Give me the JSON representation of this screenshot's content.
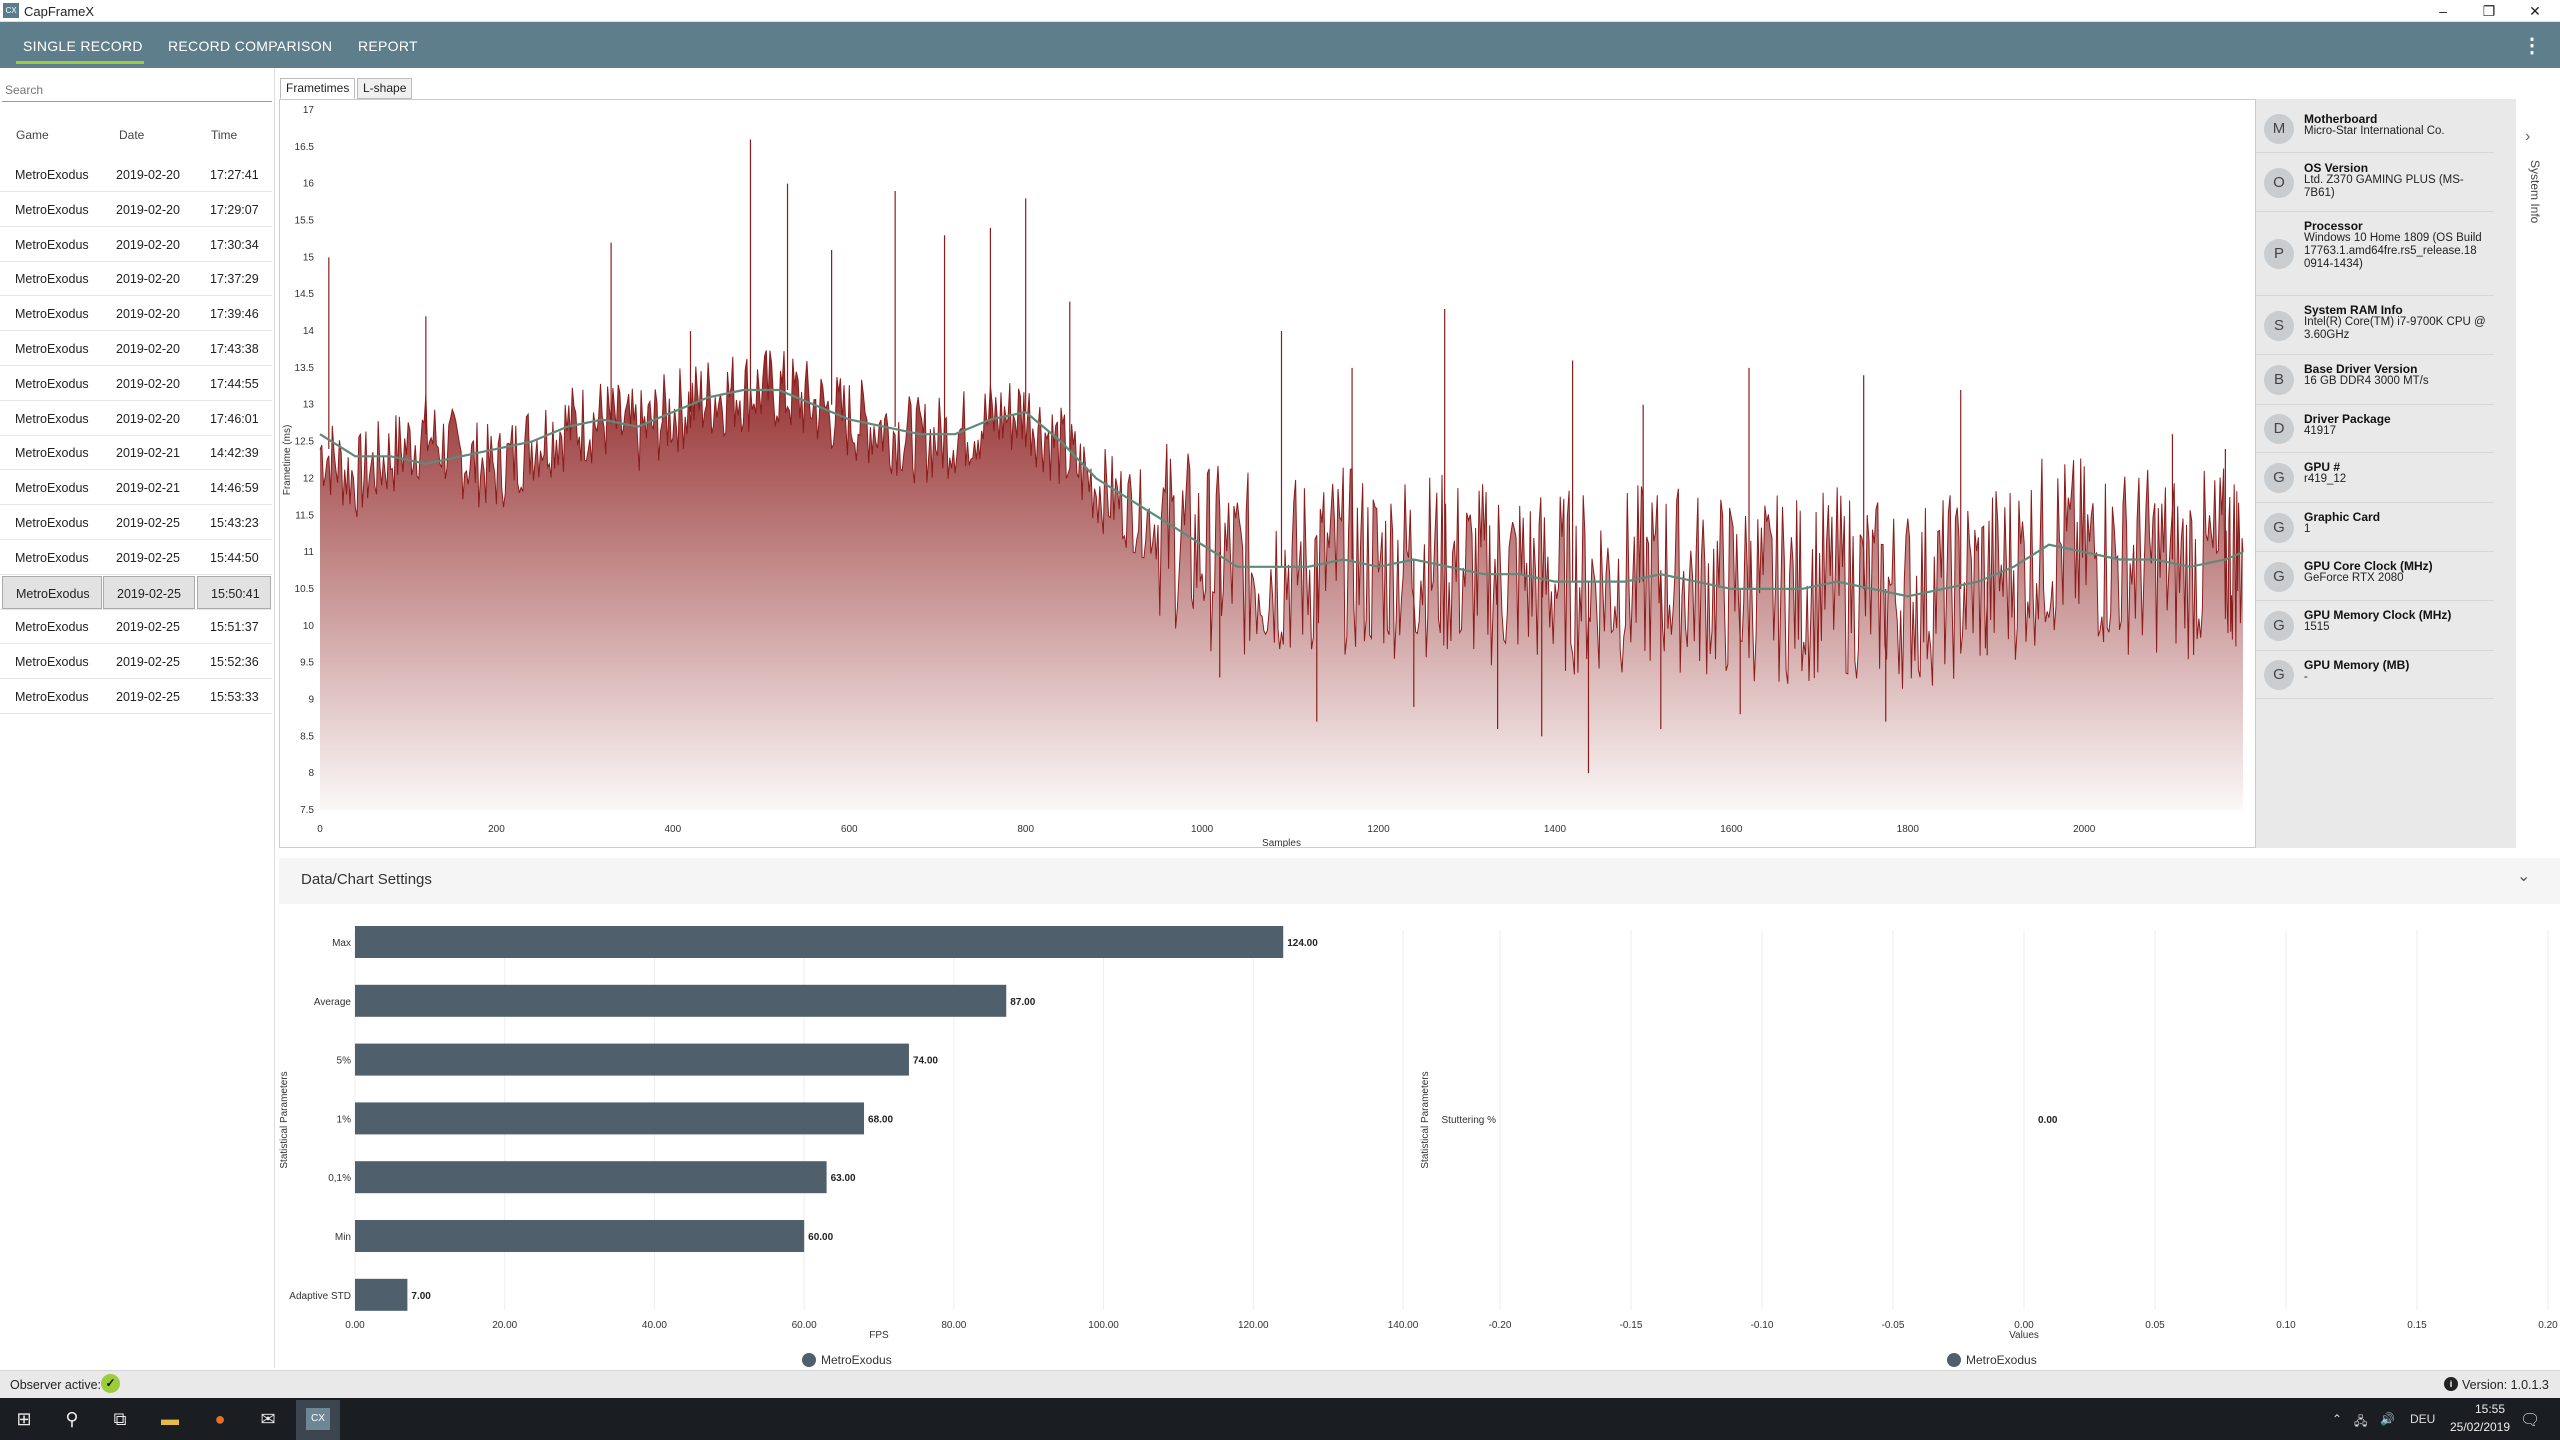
{
  "window": {
    "title": "CapFrameX",
    "icon_text": "CX",
    "minimize": "–",
    "maximize": "❐",
    "close": "✕"
  },
  "nav": {
    "tabs": [
      "SINGLE RECORD",
      "RECORD COMPARISON",
      "REPORT"
    ],
    "active": "SINGLE RECORD",
    "menu_glyph": "⋮"
  },
  "accent_colors": {
    "nav": "#5f7e8b",
    "underline": "#9ccc3c",
    "bars": "#4f5f6b",
    "frametime": "#8b1c1c",
    "moving_avg": "#5f8a7a"
  },
  "sidebar": {
    "search_placeholder": "Search",
    "headers": {
      "game": "Game",
      "date": "Date",
      "time": "Time"
    },
    "rows": [
      {
        "game": "MetroExodus",
        "date": "2019-02-20",
        "time": "17:27:41"
      },
      {
        "game": "MetroExodus",
        "date": "2019-02-20",
        "time": "17:29:07"
      },
      {
        "game": "MetroExodus",
        "date": "2019-02-20",
        "time": "17:30:34"
      },
      {
        "game": "MetroExodus",
        "date": "2019-02-20",
        "time": "17:37:29"
      },
      {
        "game": "MetroExodus",
        "date": "2019-02-20",
        "time": "17:39:46"
      },
      {
        "game": "MetroExodus",
        "date": "2019-02-20",
        "time": "17:43:38"
      },
      {
        "game": "MetroExodus",
        "date": "2019-02-20",
        "time": "17:44:55"
      },
      {
        "game": "MetroExodus",
        "date": "2019-02-20",
        "time": "17:46:01"
      },
      {
        "game": "MetroExodus",
        "date": "2019-02-21",
        "time": "14:42:39"
      },
      {
        "game": "MetroExodus",
        "date": "2019-02-21",
        "time": "14:46:59"
      },
      {
        "game": "MetroExodus",
        "date": "2019-02-25",
        "time": "15:43:23"
      },
      {
        "game": "MetroExodus",
        "date": "2019-02-25",
        "time": "15:44:50"
      },
      {
        "game": "MetroExodus",
        "date": "2019-02-25",
        "time": "15:50:41"
      },
      {
        "game": "MetroExodus",
        "date": "2019-02-25",
        "time": "15:51:37"
      },
      {
        "game": "MetroExodus",
        "date": "2019-02-25",
        "time": "15:52:36"
      },
      {
        "game": "MetroExodus",
        "date": "2019-02-25",
        "time": "15:53:33"
      }
    ],
    "selected_index": 12
  },
  "chart_tabs": [
    "Frametimes",
    "L-shape"
  ],
  "system_info": {
    "tab_label": "System Info",
    "items": [
      {
        "avatar": "M",
        "label": "Motherboard",
        "value": "Micro-Star International Co."
      },
      {
        "avatar": "O",
        "label": "OS Version",
        "value": "Ltd. Z370 GAMING PLUS (MS-7B61)"
      },
      {
        "avatar": "P",
        "label": "Processor",
        "value": "Windows 10 Home 1809 (OS Build 17763.1.amd64fre.rs5_release.18 0914-1434)"
      },
      {
        "avatar": "S",
        "label": "System RAM Info",
        "value": "Intel(R) Core(TM) i7-9700K CPU @ 3.60GHz"
      },
      {
        "avatar": "B",
        "label": "Base Driver Version",
        "value": "16 GB DDR4 3000 MT/s"
      },
      {
        "avatar": "D",
        "label": "Driver Package",
        "value": "41917"
      },
      {
        "avatar": "G",
        "label": "GPU #",
        "value": "r419_12"
      },
      {
        "avatar": "G",
        "label": "Graphic Card",
        "value": "1"
      },
      {
        "avatar": "G",
        "label": "GPU Core Clock (MHz)",
        "value": "GeForce RTX 2080"
      },
      {
        "avatar": "G",
        "label": "GPU Memory Clock (MHz)",
        "value": "1515"
      },
      {
        "avatar": "G",
        "label": "GPU Memory (MB)",
        "value": "-"
      }
    ]
  },
  "settings": {
    "title": "Data/Chart Settings",
    "chevron": "⌄"
  },
  "status": {
    "observer_label": "Observer active:",
    "version": "Version: 1.0.1.3"
  },
  "taskbar": {
    "time": "15:55",
    "date": "25/02/2019",
    "lang": "DEU"
  },
  "chart_data": [
    {
      "type": "line",
      "title": "",
      "xlabel": "Samples",
      "ylabel": "Frametime (ms)",
      "xlim": [
        0,
        2180
      ],
      "ylim": [
        7.5,
        17
      ],
      "x_ticks": [
        0,
        200,
        400,
        600,
        800,
        1000,
        1200,
        1400,
        1600,
        1800,
        2000
      ],
      "y_ticks": [
        7.5,
        8,
        8.5,
        9,
        9.5,
        10,
        10.5,
        11,
        11.5,
        12,
        12.5,
        13,
        13.5,
        14,
        14.5,
        15,
        15.5,
        16,
        16.5,
        17
      ],
      "series": [
        {
          "name": "Frametimes",
          "x": [
            0,
            40,
            80,
            120,
            160,
            200,
            240,
            280,
            320,
            360,
            400,
            440,
            480,
            520,
            560,
            600,
            640,
            680,
            720,
            760,
            800,
            840,
            880,
            920,
            960,
            1000,
            1040,
            1080,
            1120,
            1160,
            1200,
            1240,
            1280,
            1320,
            1360,
            1400,
            1440,
            1480,
            1520,
            1560,
            1600,
            1640,
            1680,
            1720,
            1760,
            1800,
            1840,
            1880,
            1920,
            1960,
            2000,
            2040,
            2080,
            2120,
            2160,
            2180
          ],
          "values": [
            12.4,
            12.0,
            12.3,
            12.6,
            12.3,
            12.1,
            12.5,
            12.7,
            12.8,
            12.6,
            12.9,
            13.1,
            13.2,
            13.2,
            13.0,
            12.8,
            12.7,
            12.5,
            12.6,
            12.8,
            12.9,
            12.4,
            11.9,
            11.6,
            11.3,
            11.0,
            10.8,
            10.8,
            10.8,
            10.9,
            10.8,
            10.9,
            10.8,
            10.7,
            10.7,
            10.6,
            10.6,
            10.6,
            10.7,
            10.6,
            10.5,
            10.5,
            10.5,
            10.6,
            10.5,
            10.4,
            10.5,
            10.6,
            10.8,
            11.1,
            11.0,
            10.9,
            10.9,
            10.8,
            10.9,
            11.0
          ],
          "spikes": [
            {
              "x": 10,
              "y": 15.0
            },
            {
              "x": 120,
              "y": 14.2
            },
            {
              "x": 330,
              "y": 15.2
            },
            {
              "x": 420,
              "y": 14.0
            },
            {
              "x": 488,
              "y": 16.6
            },
            {
              "x": 530,
              "y": 16.0
            },
            {
              "x": 580,
              "y": 15.1
            },
            {
              "x": 652,
              "y": 15.9
            },
            {
              "x": 708,
              "y": 15.3
            },
            {
              "x": 760,
              "y": 15.4
            },
            {
              "x": 800,
              "y": 15.8
            },
            {
              "x": 850,
              "y": 14.4
            },
            {
              "x": 1090,
              "y": 14.0
            },
            {
              "x": 1170,
              "y": 13.5
            },
            {
              "x": 1275,
              "y": 14.3
            },
            {
              "x": 1420,
              "y": 13.6
            },
            {
              "x": 1500,
              "y": 13.0
            },
            {
              "x": 1620,
              "y": 13.5
            },
            {
              "x": 1750,
              "y": 13.4
            },
            {
              "x": 1860,
              "y": 13.2
            },
            {
              "x": 2100,
              "y": 12.6
            },
            {
              "x": 2160,
              "y": 12.4
            }
          ],
          "dips": [
            {
              "x": 1020,
              "y": 9.3
            },
            {
              "x": 1130,
              "y": 8.7
            },
            {
              "x": 1240,
              "y": 8.9
            },
            {
              "x": 1335,
              "y": 8.6
            },
            {
              "x": 1385,
              "y": 8.5
            },
            {
              "x": 1438,
              "y": 8.0
            },
            {
              "x": 1520,
              "y": 8.6
            },
            {
              "x": 1610,
              "y": 8.8
            },
            {
              "x": 1775,
              "y": 8.7
            },
            {
              "x": 1890,
              "y": 9.6
            }
          ]
        },
        {
          "name": "Moving average",
          "x": [
            0,
            40,
            80,
            120,
            160,
            200,
            240,
            280,
            320,
            360,
            400,
            440,
            480,
            520,
            560,
            600,
            640,
            680,
            720,
            760,
            800,
            840,
            880,
            920,
            960,
            1000,
            1040,
            1080,
            1120,
            1160,
            1200,
            1240,
            1280,
            1320,
            1360,
            1400,
            1440,
            1480,
            1520,
            1560,
            1600,
            1640,
            1680,
            1720,
            1760,
            1800,
            1840,
            1880,
            1920,
            1960,
            2000,
            2040,
            2080,
            2120,
            2160,
            2180
          ],
          "values": [
            12.6,
            12.3,
            12.3,
            12.2,
            12.3,
            12.4,
            12.5,
            12.7,
            12.8,
            12.7,
            12.9,
            13.1,
            13.2,
            13.2,
            13.0,
            12.8,
            12.7,
            12.6,
            12.6,
            12.8,
            12.9,
            12.5,
            12.0,
            11.7,
            11.4,
            11.1,
            10.8,
            10.8,
            10.8,
            10.9,
            10.8,
            10.9,
            10.8,
            10.7,
            10.7,
            10.6,
            10.6,
            10.6,
            10.7,
            10.6,
            10.5,
            10.5,
            10.5,
            10.6,
            10.5,
            10.4,
            10.5,
            10.6,
            10.8,
            11.1,
            11.0,
            10.9,
            10.9,
            10.8,
            10.9,
            11.0
          ]
        }
      ]
    },
    {
      "type": "bar",
      "orientation": "horizontal",
      "ylabel": "Statistical Parameters",
      "xlabel": "FPS",
      "categories": [
        "Max",
        "Average",
        "5%",
        "1%",
        "0,1%",
        "Min",
        "Adaptive STD"
      ],
      "values": [
        124.0,
        87.0,
        74.0,
        68.0,
        63.0,
        60.0,
        7.0
      ],
      "value_labels": [
        "124.00",
        "87.00",
        "74.00",
        "68.00",
        "63.00",
        "60.00",
        "7.00"
      ],
      "xlim": [
        0,
        140
      ],
      "x_ticks": [
        "0.00",
        "20.00",
        "40.00",
        "60.00",
        "80.00",
        "100.00",
        "120.00",
        "140.00"
      ],
      "legend": "MetroExodus",
      "legend_placement": "bottom"
    },
    {
      "type": "bar",
      "orientation": "horizontal",
      "ylabel": "Statistical Parameters",
      "xlabel": "Values",
      "categories": [
        "Stuttering %"
      ],
      "values": [
        0.0
      ],
      "value_labels": [
        "0.00"
      ],
      "xlim": [
        -0.2,
        0.2
      ],
      "x_ticks": [
        "-0.20",
        "-0.15",
        "-0.10",
        "-0.05",
        "0.00",
        "0.05",
        "0.10",
        "0.15",
        "0.20"
      ],
      "legend": "MetroExodus",
      "legend_placement": "bottom"
    }
  ]
}
